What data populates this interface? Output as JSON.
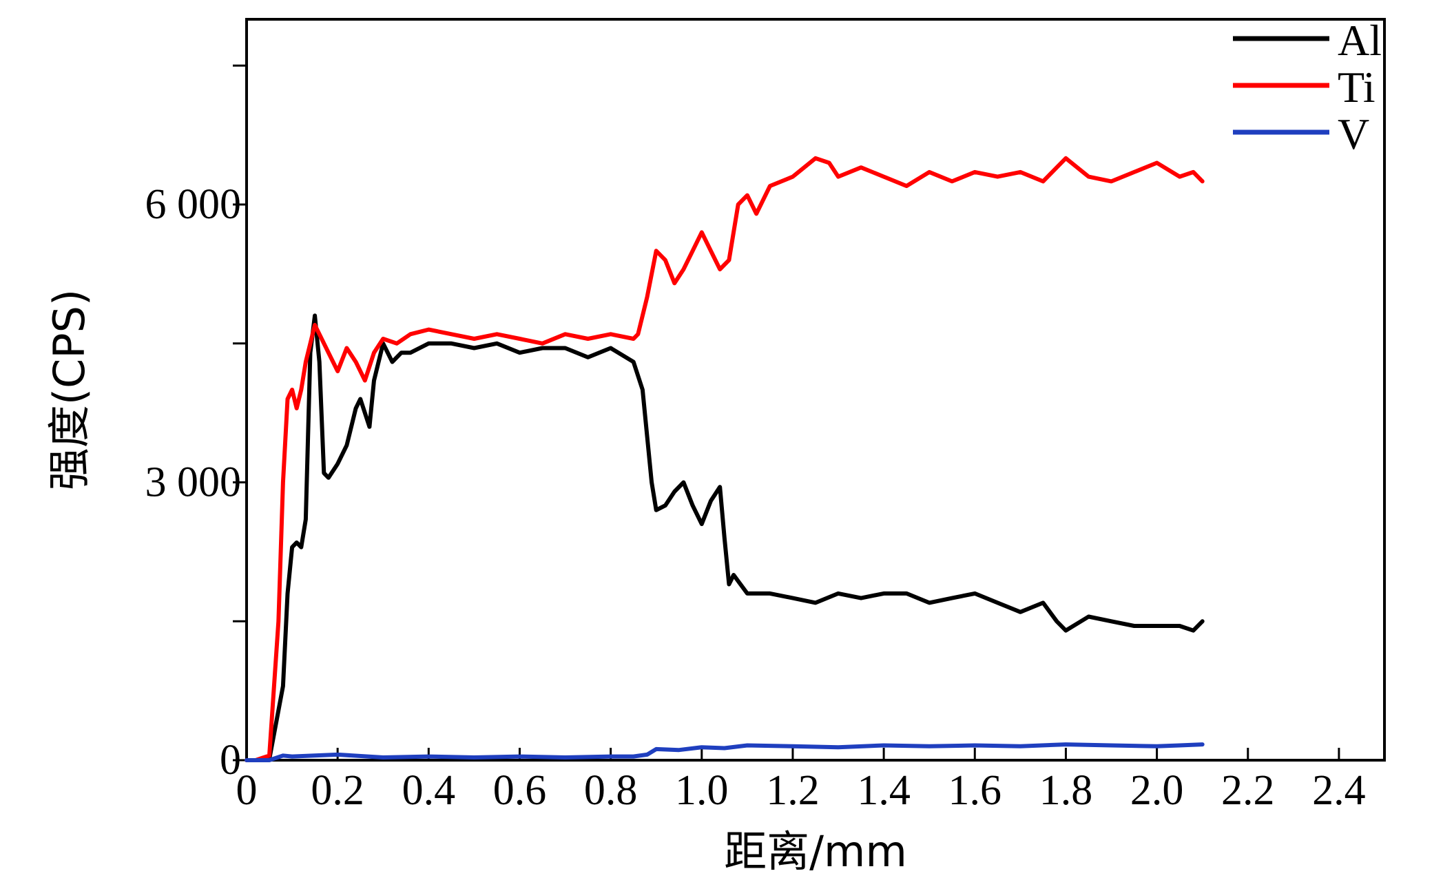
{
  "chart_data": {
    "type": "line",
    "title": "",
    "xlabel": "距离/mm",
    "ylabel": "强度(CPS)",
    "xlim": [
      0,
      2.5
    ],
    "ylim": [
      0,
      8000
    ],
    "x_ticks": [
      0,
      0.2,
      0.4,
      0.6,
      0.8,
      1.0,
      1.2,
      1.4,
      1.6,
      1.8,
      2.0,
      2.2,
      2.4
    ],
    "x_tick_labels": [
      "0",
      "0.2",
      "0.4",
      "0.6",
      "0.8",
      "1.0",
      "1.2",
      "1.4",
      "1.6",
      "1.8",
      "2.0",
      "2.2",
      "2.4"
    ],
    "y_ticks": [
      0,
      1500,
      3000,
      4500,
      6000,
      7500
    ],
    "y_tick_labels": [
      "0",
      "",
      "3 000",
      "",
      "6 000",
      ""
    ],
    "grid": false,
    "legend_position": "top-right",
    "series": [
      {
        "name": "Al",
        "color": "#000000",
        "x": [
          0.0,
          0.02,
          0.05,
          0.08,
          0.09,
          0.1,
          0.11,
          0.12,
          0.13,
          0.14,
          0.15,
          0.16,
          0.17,
          0.18,
          0.2,
          0.22,
          0.24,
          0.25,
          0.27,
          0.28,
          0.3,
          0.32,
          0.34,
          0.36,
          0.4,
          0.45,
          0.5,
          0.55,
          0.6,
          0.65,
          0.7,
          0.75,
          0.8,
          0.85,
          0.87,
          0.88,
          0.89,
          0.9,
          0.92,
          0.94,
          0.96,
          0.98,
          1.0,
          1.02,
          1.04,
          1.05,
          1.06,
          1.07,
          1.1,
          1.15,
          1.2,
          1.25,
          1.3,
          1.35,
          1.4,
          1.45,
          1.5,
          1.55,
          1.6,
          1.65,
          1.7,
          1.75,
          1.78,
          1.8,
          1.85,
          1.9,
          1.95,
          2.0,
          2.05,
          2.08,
          2.1
        ],
        "values": [
          0,
          0,
          10,
          800,
          1800,
          2300,
          2350,
          2300,
          2600,
          4400,
          4800,
          4300,
          3100,
          3050,
          3200,
          3400,
          3800,
          3900,
          3600,
          4100,
          4500,
          4300,
          4400,
          4400,
          4500,
          4500,
          4450,
          4500,
          4400,
          4450,
          4450,
          4350,
          4450,
          4300,
          4000,
          3500,
          3000,
          2700,
          2750,
          2900,
          3000,
          2750,
          2550,
          2800,
          2950,
          2400,
          1900,
          2000,
          1800,
          1800,
          1750,
          1700,
          1800,
          1750,
          1800,
          1800,
          1700,
          1750,
          1800,
          1700,
          1600,
          1700,
          1500,
          1400,
          1550,
          1500,
          1450,
          1450,
          1450,
          1400,
          1500
        ]
      },
      {
        "name": "Ti",
        "color": "#ff0000",
        "x": [
          0.0,
          0.02,
          0.05,
          0.07,
          0.08,
          0.09,
          0.1,
          0.11,
          0.12,
          0.13,
          0.14,
          0.15,
          0.16,
          0.18,
          0.2,
          0.22,
          0.24,
          0.26,
          0.28,
          0.3,
          0.33,
          0.36,
          0.4,
          0.45,
          0.5,
          0.55,
          0.6,
          0.65,
          0.7,
          0.75,
          0.8,
          0.85,
          0.86,
          0.88,
          0.9,
          0.92,
          0.94,
          0.96,
          0.98,
          1.0,
          1.02,
          1.04,
          1.06,
          1.08,
          1.1,
          1.12,
          1.15,
          1.2,
          1.25,
          1.28,
          1.3,
          1.35,
          1.4,
          1.45,
          1.5,
          1.55,
          1.6,
          1.65,
          1.7,
          1.75,
          1.78,
          1.8,
          1.85,
          1.9,
          1.95,
          2.0,
          2.05,
          2.08,
          2.1
        ],
        "values": [
          0,
          0,
          50,
          1500,
          3000,
          3900,
          4000,
          3800,
          4000,
          4300,
          4500,
          4700,
          4600,
          4400,
          4200,
          4450,
          4300,
          4100,
          4400,
          4550,
          4500,
          4600,
          4650,
          4600,
          4550,
          4600,
          4550,
          4500,
          4600,
          4550,
          4600,
          4550,
          4600,
          5000,
          5500,
          5400,
          5150,
          5300,
          5500,
          5700,
          5500,
          5300,
          5400,
          6000,
          6100,
          5900,
          6200,
          6300,
          6500,
          6450,
          6300,
          6400,
          6300,
          6200,
          6350,
          6250,
          6350,
          6300,
          6350,
          6250,
          6400,
          6500,
          6300,
          6250,
          6350,
          6450,
          6300,
          6350,
          6250
        ]
      },
      {
        "name": "V",
        "color": "#1f3fbf",
        "x": [
          0.0,
          0.05,
          0.08,
          0.1,
          0.2,
          0.3,
          0.4,
          0.5,
          0.6,
          0.7,
          0.8,
          0.85,
          0.88,
          0.9,
          0.95,
          1.0,
          1.05,
          1.1,
          1.2,
          1.3,
          1.4,
          1.5,
          1.6,
          1.7,
          1.8,
          1.9,
          2.0,
          2.05,
          2.1
        ],
        "values": [
          0,
          0,
          50,
          40,
          60,
          30,
          40,
          30,
          40,
          30,
          40,
          40,
          60,
          120,
          110,
          140,
          130,
          160,
          150,
          140,
          160,
          150,
          160,
          150,
          170,
          160,
          150,
          160,
          170
        ]
      }
    ]
  }
}
